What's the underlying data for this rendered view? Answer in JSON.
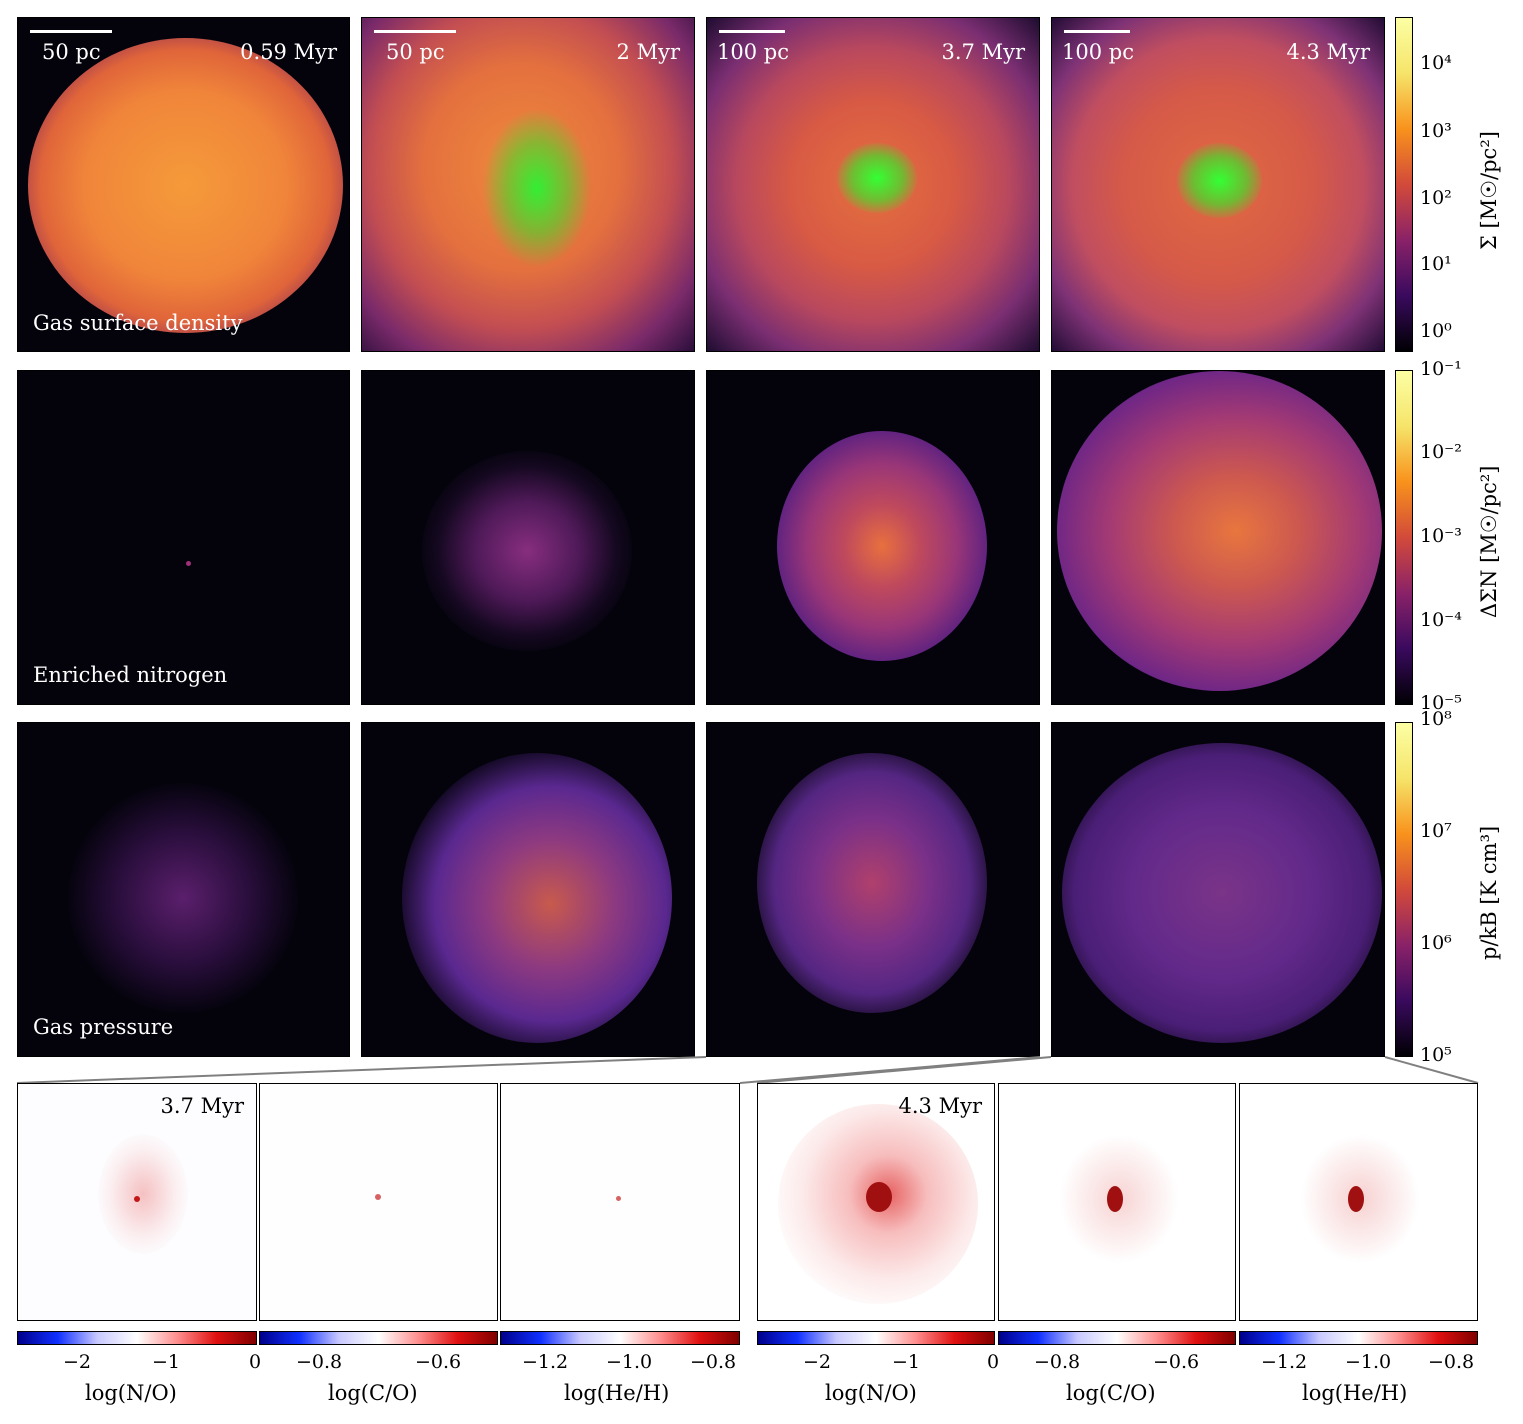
{
  "rows": {
    "density": {
      "label": "Gas surface density",
      "colorbar_label": "Σ [M☉/pc²]",
      "colorbar_ticks": [
        "10⁴",
        "10³",
        "10²",
        "10¹",
        "10⁰"
      ]
    },
    "nitrogen": {
      "label": "Enriched nitrogen",
      "colorbar_label": "ΔΣN [M☉/pc²]",
      "colorbar_ticks": [
        "10⁻¹",
        "10⁻²",
        "10⁻³",
        "10⁻⁴",
        "10⁻⁵"
      ]
    },
    "pressure": {
      "label": "Gas pressure",
      "colorbar_label": "p/kB [K cm³]",
      "colorbar_ticks": [
        "10⁸",
        "10⁷",
        "10⁶",
        "10⁵"
      ]
    }
  },
  "columns": [
    {
      "time": "0.59 Myr",
      "scale": "50 pc"
    },
    {
      "time": "2 Myr",
      "scale": "50 pc"
    },
    {
      "time": "3.7 Myr",
      "scale": "100 pc"
    },
    {
      "time": "4.3 Myr",
      "scale": "100 pc"
    }
  ],
  "zoom": {
    "left_time": "3.7 Myr",
    "right_time": "4.3 Myr",
    "colorbars": [
      {
        "label": "log(N/O)",
        "ticks": [
          "−2",
          "−1",
          "0"
        ]
      },
      {
        "label": "log(C/O)",
        "ticks": [
          "−0.8",
          "−0.6"
        ]
      },
      {
        "label": "log(He/H)",
        "ticks": [
          "−1.2",
          "−1.0",
          "−0.8"
        ]
      },
      {
        "label": "log(N/O)",
        "ticks": [
          "−2",
          "−1",
          "0"
        ]
      },
      {
        "label": "log(C/O)",
        "ticks": [
          "−0.8",
          "−0.6"
        ]
      },
      {
        "label": "log(He/H)",
        "ticks": [
          "−1.2",
          "−1.0",
          "−0.8"
        ]
      }
    ]
  },
  "colors": {
    "inferno_low": "#04030c",
    "inferno_mid": "#c13a50",
    "inferno_high": "#fcfea4",
    "stars": "#22ee22",
    "diverging_low": "#0000c0",
    "diverging_high": "#b00000"
  }
}
